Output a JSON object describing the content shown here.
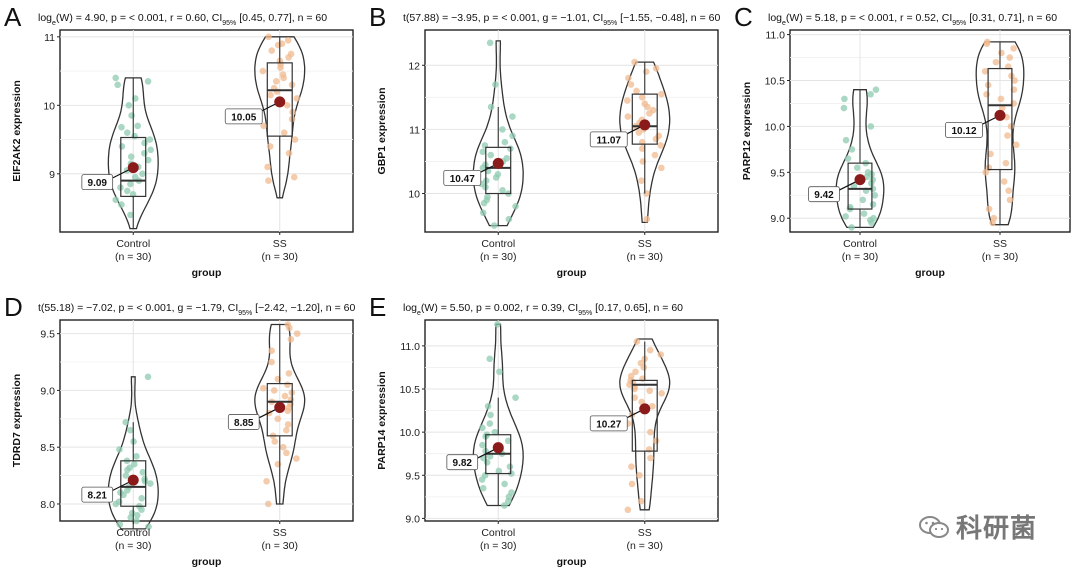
{
  "chart_data": [
    {
      "type": "violin-box",
      "panel_letter": "A",
      "subtitle": "logₑ(W) = 4.90, p = < 0.001, r = 0.60, CI95% [0.45, 0.77], n = 60",
      "ylabel": "EIF2AK2 expression",
      "xlabel": "group",
      "ylim": [
        8.15,
        11.1
      ],
      "yticks": [
        9,
        10,
        11
      ],
      "categories": [
        "Control",
        "SS"
      ],
      "category_n": [
        "(n = 30)",
        "(n = 30)"
      ],
      "groups": [
        {
          "name": "Control",
          "mean": 9.09,
          "mean_label": "9.09",
          "q1": 8.67,
          "median": 8.9,
          "q3": 9.53,
          "whisker_low": 8.2,
          "whisker_high": 10.4,
          "violin_min": 8.2,
          "violin_max": 10.4,
          "points": [
            10.4,
            10.35,
            10.3,
            10.1,
            10.0,
            9.85,
            9.7,
            9.68,
            9.6,
            9.55,
            9.5,
            9.45,
            9.4,
            9.35,
            9.3,
            9.25,
            9.2,
            9.15,
            9.1,
            9.05,
            9.0,
            8.95,
            8.9,
            8.85,
            8.8,
            8.75,
            8.7,
            8.62,
            8.55,
            8.4
          ]
        },
        {
          "name": "SS",
          "mean": 10.05,
          "mean_label": "10.05",
          "q1": 9.55,
          "median": 10.22,
          "q3": 10.62,
          "whisker_low": 8.65,
          "whisker_high": 11.0,
          "violin_min": 8.65,
          "violin_max": 11.0,
          "points": [
            11.0,
            10.95,
            10.9,
            10.88,
            10.8,
            10.75,
            10.7,
            10.65,
            10.6,
            10.55,
            10.5,
            10.45,
            10.4,
            10.35,
            10.3,
            10.25,
            10.2,
            10.15,
            10.1,
            10.0,
            9.9,
            9.8,
            9.7,
            9.6,
            9.5,
            9.4,
            9.3,
            9.1,
            8.95,
            8.9
          ]
        }
      ]
    },
    {
      "type": "violin-box",
      "panel_letter": "B",
      "subtitle": "t(57.88) = −3.95, p = < 0.001, g = −1.01, CI95% [−1.55, −0.48], n = 60",
      "ylabel": "GBP1 expression",
      "xlabel": "group",
      "ylim": [
        9.4,
        12.55
      ],
      "yticks": [
        10,
        11,
        12
      ],
      "categories": [
        "Control",
        "SS"
      ],
      "category_n": [
        "(n = 30)",
        "(n = 30)"
      ],
      "groups": [
        {
          "name": "Control",
          "mean": 10.47,
          "mean_label": "10.47",
          "q1": 10.0,
          "median": 10.4,
          "q3": 10.72,
          "whisker_low": 9.5,
          "whisker_high": 11.35,
          "violin_min": 9.5,
          "violin_max": 12.38,
          "points": [
            12.35,
            11.7,
            11.35,
            11.2,
            11.0,
            10.9,
            10.8,
            10.75,
            10.7,
            10.65,
            10.6,
            10.55,
            10.5,
            10.45,
            10.4,
            10.35,
            10.3,
            10.25,
            10.2,
            10.15,
            10.1,
            10.05,
            10.0,
            9.95,
            9.9,
            9.85,
            9.8,
            9.7,
            9.6,
            9.5
          ]
        },
        {
          "name": "SS",
          "mean": 11.07,
          "mean_label": "11.07",
          "q1": 10.77,
          "median": 11.05,
          "q3": 11.55,
          "whisker_low": 10.0,
          "whisker_high": 12.05,
          "violin_min": 9.55,
          "violin_max": 12.05,
          "points": [
            12.05,
            11.95,
            11.9,
            11.8,
            11.7,
            11.6,
            11.55,
            11.5,
            11.45,
            11.4,
            11.35,
            11.3,
            11.25,
            11.2,
            11.15,
            11.1,
            11.05,
            11.0,
            10.95,
            10.9,
            10.85,
            10.8,
            10.75,
            10.7,
            10.6,
            10.5,
            10.4,
            10.2,
            10.0,
            9.6
          ]
        }
      ]
    },
    {
      "type": "violin-box",
      "panel_letter": "C",
      "subtitle": "logₑ(W) = 5.18, p = < 0.001, r = 0.52, CI95% [0.31, 0.71], n = 60",
      "ylabel": "PARP12 expression",
      "xlabel": "group",
      "ylim": [
        8.85,
        11.05
      ],
      "yticks": [
        9.0,
        9.5,
        10.0,
        10.5,
        11.0
      ],
      "ytick_labels": [
        "9.0",
        "9.5",
        "10.0",
        "10.5",
        "11.0"
      ],
      "categories": [
        "Control",
        "SS"
      ],
      "category_n": [
        "(n = 30)",
        "(n = 30)"
      ],
      "groups": [
        {
          "name": "Control",
          "mean": 9.42,
          "mean_label": "9.42",
          "q1": 9.1,
          "median": 9.32,
          "q3": 9.6,
          "whisker_low": 8.9,
          "whisker_high": 10.4,
          "violin_min": 8.9,
          "violin_max": 10.4,
          "points": [
            10.4,
            10.35,
            10.3,
            10.2,
            10.0,
            9.85,
            9.75,
            9.65,
            9.6,
            9.55,
            9.5,
            9.48,
            9.45,
            9.42,
            9.4,
            9.38,
            9.35,
            9.32,
            9.3,
            9.25,
            9.2,
            9.15,
            9.12,
            9.1,
            9.05,
            9.02,
            9.0,
            8.98,
            8.95,
            8.9
          ]
        },
        {
          "name": "SS",
          "mean": 10.12,
          "mean_label": "10.12",
          "q1": 9.53,
          "median": 10.23,
          "q3": 10.63,
          "whisker_low": 8.93,
          "whisker_high": 10.92,
          "violin_min": 8.93,
          "violin_max": 10.92,
          "points": [
            10.92,
            10.9,
            10.85,
            10.8,
            10.75,
            10.7,
            10.65,
            10.6,
            10.55,
            10.5,
            10.45,
            10.4,
            10.35,
            10.3,
            10.25,
            10.2,
            10.1,
            10.0,
            9.9,
            9.8,
            9.7,
            9.6,
            9.55,
            9.5,
            9.4,
            9.3,
            9.2,
            9.1,
            9.0,
            8.95
          ]
        }
      ]
    },
    {
      "type": "violin-box",
      "panel_letter": "D",
      "subtitle": "t(55.18) = −7.02, p = < 0.001, g = −1.79, CI95% [−2.42, −1.20], n = 60",
      "ylabel": "TDRD7 expression",
      "xlabel": "group",
      "ylim": [
        7.85,
        9.62
      ],
      "yticks": [
        8.0,
        8.5,
        9.0,
        9.5
      ],
      "ytick_labels": [
        "8.0",
        "8.5",
        "9.0",
        "9.5"
      ],
      "categories": [
        "Control",
        "SS"
      ],
      "category_n": [
        "(n = 30)",
        "(n = 30)"
      ],
      "groups": [
        {
          "name": "Control",
          "mean": 8.21,
          "mean_label": "8.21",
          "q1": 7.98,
          "median": 8.15,
          "q3": 8.38,
          "whisker_low": 7.78,
          "whisker_high": 8.72,
          "violin_min": 7.78,
          "violin_max": 9.12,
          "points": [
            9.12,
            8.72,
            8.65,
            8.55,
            8.48,
            8.42,
            8.38,
            8.35,
            8.32,
            8.3,
            8.28,
            8.25,
            8.22,
            8.2,
            8.18,
            8.15,
            8.12,
            8.1,
            8.08,
            8.05,
            8.02,
            8.0,
            7.98,
            7.95,
            7.92,
            7.9,
            7.88,
            7.85,
            7.82,
            7.8
          ]
        },
        {
          "name": "SS",
          "mean": 8.85,
          "mean_label": "8.85",
          "q1": 8.6,
          "median": 8.9,
          "q3": 9.06,
          "whisker_low": 8.0,
          "whisker_high": 9.58,
          "violin_min": 8.0,
          "violin_max": 9.58,
          "points": [
            9.58,
            9.55,
            9.5,
            9.45,
            9.35,
            9.25,
            9.15,
            9.1,
            9.05,
            9.02,
            9.0,
            8.98,
            8.95,
            8.92,
            8.9,
            8.88,
            8.85,
            8.82,
            8.8,
            8.75,
            8.7,
            8.65,
            8.6,
            8.55,
            8.5,
            8.45,
            8.4,
            8.35,
            8.2,
            8.0
          ]
        }
      ]
    },
    {
      "type": "violin-box",
      "panel_letter": "E",
      "subtitle": "logₑ(W) = 5.50, p = 0.002, r = 0.39, CI95% [0.17, 0.65], n = 60",
      "ylabel": "PARP14 expression",
      "xlabel": "group",
      "ylim": [
        8.97,
        11.3
      ],
      "yticks": [
        9.0,
        9.5,
        10.0,
        10.5,
        11.0
      ],
      "ytick_labels": [
        "9.0",
        "9.5",
        "10.0",
        "10.5",
        "11.0"
      ],
      "categories": [
        "Control",
        "SS"
      ],
      "category_n": [
        "(n = 30)",
        "(n = 30)"
      ],
      "groups": [
        {
          "name": "Control",
          "mean": 9.82,
          "mean_label": "9.82",
          "q1": 9.52,
          "median": 9.75,
          "q3": 9.97,
          "whisker_low": 9.15,
          "whisker_high": 10.4,
          "violin_min": 9.15,
          "violin_max": 11.25,
          "points": [
            11.25,
            10.85,
            10.7,
            10.4,
            10.3,
            10.2,
            10.1,
            10.05,
            10.0,
            9.97,
            9.95,
            9.9,
            9.85,
            9.8,
            9.78,
            9.75,
            9.72,
            9.7,
            9.65,
            9.6,
            9.55,
            9.52,
            9.5,
            9.45,
            9.4,
            9.35,
            9.3,
            9.25,
            9.2,
            9.15
          ]
        },
        {
          "name": "SS",
          "mean": 10.27,
          "mean_label": "10.27",
          "q1": 9.78,
          "median": 10.55,
          "q3": 10.6,
          "whisker_low": 9.1,
          "whisker_high": 11.05,
          "violin_min": 9.1,
          "violin_max": 11.08,
          "points": [
            11.05,
            10.95,
            10.9,
            10.85,
            10.8,
            10.75,
            10.7,
            10.65,
            10.62,
            10.6,
            10.58,
            10.55,
            10.52,
            10.5,
            10.48,
            10.45,
            10.4,
            10.35,
            10.3,
            10.2,
            10.1,
            10.0,
            9.9,
            9.8,
            9.7,
            9.6,
            9.5,
            9.4,
            9.2,
            9.1
          ]
        }
      ]
    }
  ],
  "colors": {
    "control": "#8fcbb0",
    "ss": "#f0b98f",
    "mean": "#8b1a1a",
    "grid": "#e4e4e4",
    "outline": "#333333"
  },
  "watermark": {
    "text": "科研菌",
    "icon": "wechat-icon"
  }
}
